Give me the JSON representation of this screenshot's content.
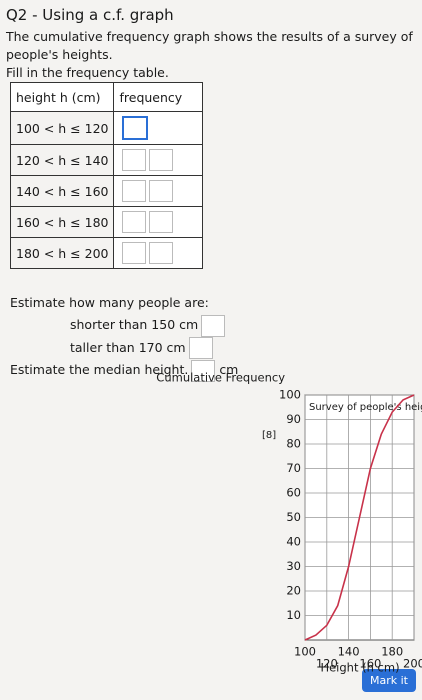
{
  "header": {
    "title": "Q2 - Using a c.f. graph",
    "instructions": [
      "The cumulative frequency graph shows the results of a survey of people's heights.",
      "Fill in the frequency table."
    ]
  },
  "table": {
    "headers": [
      "height h (cm)",
      "frequency"
    ],
    "rows": [
      "100 < h ≤ 120",
      "120 < h ≤ 140",
      "140 < h ≤ 160",
      "160 < h ≤ 180",
      "180 < h ≤ 200"
    ]
  },
  "estimates": {
    "prompt": "Estimate how many people are:",
    "items": [
      "shorter than 150 cm",
      "taller than 170 cm"
    ],
    "median": "Estimate the median height.",
    "unit": "cm",
    "marks": "[8]"
  },
  "button": "Mark it",
  "chart_data": {
    "type": "line",
    "y_label": "Cumulative Frequency",
    "x_label": "Height (h cm)",
    "annotation": "Survey of people's heights",
    "x": [
      100,
      110,
      120,
      130,
      140,
      150,
      160,
      170,
      180,
      190,
      200
    ],
    "values": [
      0,
      2,
      6,
      14,
      30,
      50,
      70,
      84,
      93,
      98,
      100
    ],
    "color": "#c8324a",
    "xlim": [
      100,
      200
    ],
    "xticks": [
      100,
      120,
      140,
      160,
      180,
      200
    ],
    "ylim": [
      0,
      100
    ],
    "yticks": [
      10,
      20,
      30,
      40,
      50,
      60,
      70,
      80,
      90,
      100
    ],
    "grid": true
  }
}
